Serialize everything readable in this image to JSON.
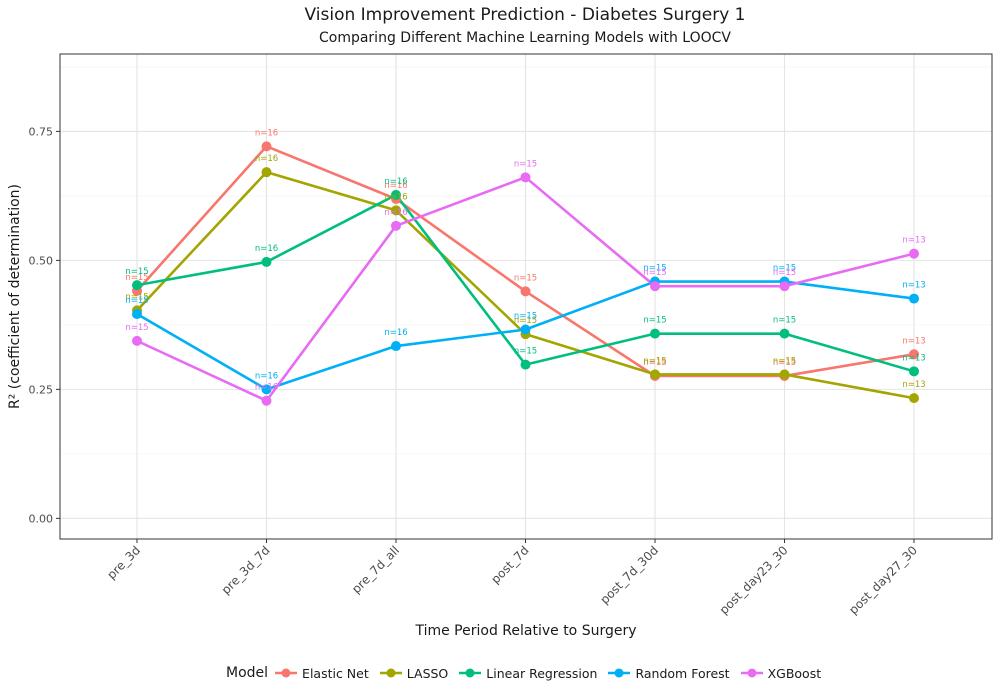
{
  "chart_data": {
    "type": "line",
    "title": "Vision Improvement Prediction - Diabetes Surgery 1",
    "subtitle": "Comparing Different Machine Learning Models with LOOCV",
    "xlabel": "Time Period Relative to Surgery",
    "ylabel": "R² (coefficient of determination)",
    "ylim": [
      -0.04,
      0.9
    ],
    "yticks": [
      0.0,
      0.25,
      0.5,
      0.75
    ],
    "ytick_labels": [
      "0.00",
      "0.25",
      "0.50",
      "0.75"
    ],
    "grid": true,
    "legend_position": "bottom",
    "legend_title": "Model",
    "categories": [
      "pre_3d",
      "pre_3d_7d",
      "pre_7d_all",
      "post_7d",
      "post_7d_30d",
      "post_day23_30",
      "post_day27_30"
    ],
    "series": [
      {
        "name": "Elastic Net",
        "color": "#F8766D",
        "values": [
          0.441,
          0.721,
          0.619,
          0.44,
          0.276,
          0.276,
          0.318
        ],
        "labels": [
          "n=15",
          "n=16",
          "n=16",
          "n=15",
          "n=15",
          "n=15",
          "n=13"
        ]
      },
      {
        "name": "LASSO",
        "color": "#A3A500",
        "values": [
          0.403,
          0.671,
          0.597,
          0.357,
          0.279,
          0.279,
          0.233
        ],
        "labels": [
          "n=15",
          "n=16",
          "n=16",
          "n=15",
          "n=15",
          "n=15",
          "n=13"
        ]
      },
      {
        "name": "Linear Regression",
        "color": "#00BF7D",
        "values": [
          0.452,
          0.497,
          0.627,
          0.298,
          0.358,
          0.358,
          0.285
        ],
        "labels": [
          "n=15",
          "n=16",
          "n=16",
          "n=15",
          "n=15",
          "n=15",
          "n=13"
        ]
      },
      {
        "name": "Random Forest",
        "color": "#00B0F6",
        "values": [
          0.396,
          0.25,
          0.334,
          0.366,
          0.459,
          0.459,
          0.426
        ],
        "labels": [
          "n=15",
          "n=16",
          "n=16",
          "n=15",
          "n=15",
          "n=15",
          "n=13"
        ]
      },
      {
        "name": "XGBoost",
        "color": "#E76BF3",
        "values": [
          0.344,
          0.228,
          0.567,
          0.661,
          0.45,
          0.45,
          0.513
        ],
        "labels": [
          "n=15",
          "n=16",
          "n=16",
          "n=15",
          "n=15",
          "n=15",
          "n=13"
        ]
      }
    ]
  }
}
